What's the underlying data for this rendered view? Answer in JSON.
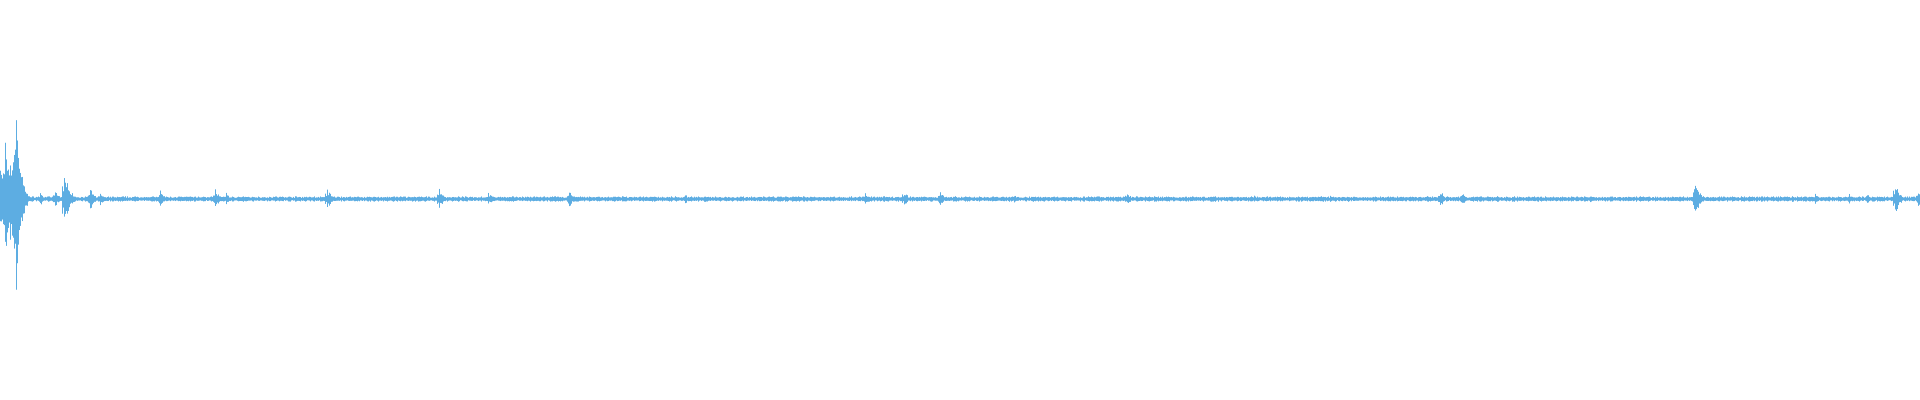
{
  "chart_data": {
    "type": "waveform",
    "color": "#5dade2",
    "background": "#ffffff",
    "amplitude_range": [
      -1,
      1
    ],
    "noise_floor": 0.012,
    "events": [
      {
        "t": 0,
        "a": 0.22
      },
      {
        "t": 5,
        "a": 0.3
      },
      {
        "t": 10,
        "a": 0.25
      },
      {
        "t": 14,
        "a": 0.42
      },
      {
        "t": 16,
        "a": 0.5
      },
      {
        "t": 19,
        "a": 0.2
      },
      {
        "t": 22,
        "a": 0.08
      },
      {
        "t": 40,
        "a": 0.03
      },
      {
        "t": 55,
        "a": 0.04
      },
      {
        "t": 64,
        "a": 0.15
      },
      {
        "t": 70,
        "a": 0.05
      },
      {
        "t": 90,
        "a": 0.05
      },
      {
        "t": 100,
        "a": 0.03
      },
      {
        "t": 160,
        "a": 0.04
      },
      {
        "t": 215,
        "a": 0.05
      },
      {
        "t": 226,
        "a": 0.03
      },
      {
        "t": 327,
        "a": 0.05
      },
      {
        "t": 439,
        "a": 0.05
      },
      {
        "t": 488,
        "a": 0.03
      },
      {
        "t": 569,
        "a": 0.04
      },
      {
        "t": 685,
        "a": 0.025
      },
      {
        "t": 780,
        "a": 0.02
      },
      {
        "t": 865,
        "a": 0.03
      },
      {
        "t": 904,
        "a": 0.04
      },
      {
        "t": 940,
        "a": 0.04
      },
      {
        "t": 1014,
        "a": 0.02
      },
      {
        "t": 1127,
        "a": 0.03
      },
      {
        "t": 1254,
        "a": 0.02
      },
      {
        "t": 1330,
        "a": 0.02
      },
      {
        "t": 1440,
        "a": 0.04
      },
      {
        "t": 1462,
        "a": 0.03
      },
      {
        "t": 1590,
        "a": 0.02
      },
      {
        "t": 1695,
        "a": 0.1
      },
      {
        "t": 1792,
        "a": 0.02
      },
      {
        "t": 1815,
        "a": 0.03
      },
      {
        "t": 1849,
        "a": 0.03
      },
      {
        "t": 1867,
        "a": 0.03
      },
      {
        "t": 1895,
        "a": 0.08
      },
      {
        "t": 1918,
        "a": 0.04
      }
    ]
  }
}
